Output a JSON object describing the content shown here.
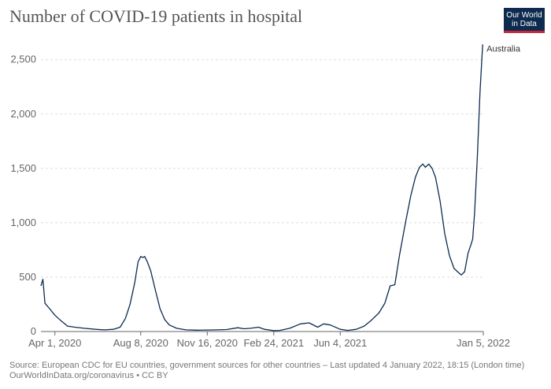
{
  "title": "Number of COVID-19 patients in hospital",
  "logo": {
    "line1": "Our World",
    "line2": "in Data"
  },
  "footer": {
    "source": "Source: European CDC for EU countries, government sources for other countries – Last updated 4 January 2022, 18:15 (London time)",
    "url": "OurWorldInData.org/coronavirus • CC BY"
  },
  "colors": {
    "line": "#0d2a4f",
    "grid": "#dddddd",
    "axis": "#666666",
    "tick_text": "#666666"
  },
  "chart_data": {
    "type": "line",
    "title": "Number of COVID-19 patients in hospital",
    "xlabel": "",
    "ylabel": "",
    "x_range": [
      "2020-03-11",
      "2022-01-05"
    ],
    "ylim": [
      0,
      2650
    ],
    "grid": true,
    "yticks": [
      0,
      500,
      1000,
      1500,
      2000,
      2500
    ],
    "ytick_labels": [
      "0",
      "500",
      "1,000",
      "1,500",
      "2,000",
      "2,500"
    ],
    "xticks": [
      "2020-04-01",
      "2020-08-08",
      "2020-11-16",
      "2021-02-24",
      "2021-06-04",
      "2022-01-05"
    ],
    "xtick_labels": [
      "Apr 1, 2020",
      "Aug 8, 2020",
      "Nov 16, 2020",
      "Feb 24, 2021",
      "Jun 4, 2021",
      "Jan 5, 2022"
    ],
    "series": [
      {
        "name": "Australia",
        "points": [
          [
            "2020-03-11",
            420
          ],
          [
            "2020-03-14",
            480
          ],
          [
            "2020-03-17",
            260
          ],
          [
            "2020-03-24",
            210
          ],
          [
            "2020-04-01",
            150
          ],
          [
            "2020-04-10",
            100
          ],
          [
            "2020-04-20",
            50
          ],
          [
            "2020-05-01",
            40
          ],
          [
            "2020-05-15",
            30
          ],
          [
            "2020-06-01",
            20
          ],
          [
            "2020-06-15",
            15
          ],
          [
            "2020-06-28",
            20
          ],
          [
            "2020-07-08",
            40
          ],
          [
            "2020-07-16",
            120
          ],
          [
            "2020-07-23",
            250
          ],
          [
            "2020-07-30",
            450
          ],
          [
            "2020-08-04",
            640
          ],
          [
            "2020-08-08",
            690
          ],
          [
            "2020-08-11",
            680
          ],
          [
            "2020-08-14",
            690
          ],
          [
            "2020-08-18",
            640
          ],
          [
            "2020-08-23",
            560
          ],
          [
            "2020-08-30",
            380
          ],
          [
            "2020-09-06",
            210
          ],
          [
            "2020-09-13",
            110
          ],
          [
            "2020-09-20",
            60
          ],
          [
            "2020-10-01",
            30
          ],
          [
            "2020-10-15",
            15
          ],
          [
            "2020-11-01",
            12
          ],
          [
            "2020-11-16",
            14
          ],
          [
            "2020-12-01",
            15
          ],
          [
            "2020-12-15",
            18
          ],
          [
            "2021-01-01",
            35
          ],
          [
            "2021-01-10",
            25
          ],
          [
            "2021-01-20",
            30
          ],
          [
            "2021-02-01",
            40
          ],
          [
            "2021-02-10",
            20
          ],
          [
            "2021-02-24",
            8
          ],
          [
            "2021-03-05",
            10
          ],
          [
            "2021-03-20",
            30
          ],
          [
            "2021-04-05",
            70
          ],
          [
            "2021-04-18",
            80
          ],
          [
            "2021-05-01",
            40
          ],
          [
            "2021-05-10",
            70
          ],
          [
            "2021-05-20",
            60
          ],
          [
            "2021-06-04",
            20
          ],
          [
            "2021-06-15",
            10
          ],
          [
            "2021-06-28",
            20
          ],
          [
            "2021-07-10",
            50
          ],
          [
            "2021-07-20",
            100
          ],
          [
            "2021-08-01",
            170
          ],
          [
            "2021-08-10",
            260
          ],
          [
            "2021-08-18",
            420
          ],
          [
            "2021-08-25",
            430
          ],
          [
            "2021-09-01",
            700
          ],
          [
            "2021-09-10",
            1000
          ],
          [
            "2021-09-18",
            1250
          ],
          [
            "2021-09-25",
            1420
          ],
          [
            "2021-10-01",
            1510
          ],
          [
            "2021-10-06",
            1540
          ],
          [
            "2021-10-10",
            1510
          ],
          [
            "2021-10-15",
            1540
          ],
          [
            "2021-10-20",
            1500
          ],
          [
            "2021-10-25",
            1420
          ],
          [
            "2021-11-01",
            1200
          ],
          [
            "2021-11-08",
            900
          ],
          [
            "2021-11-15",
            700
          ],
          [
            "2021-11-22",
            580
          ],
          [
            "2021-11-29",
            540
          ],
          [
            "2021-12-03",
            520
          ],
          [
            "2021-12-08",
            550
          ],
          [
            "2021-12-13",
            720
          ],
          [
            "2021-12-17",
            790
          ],
          [
            "2021-12-20",
            850
          ],
          [
            "2021-12-23",
            1100
          ],
          [
            "2021-12-27",
            1600
          ],
          [
            "2021-12-31",
            2200
          ],
          [
            "2022-01-04",
            2640
          ]
        ]
      }
    ]
  }
}
